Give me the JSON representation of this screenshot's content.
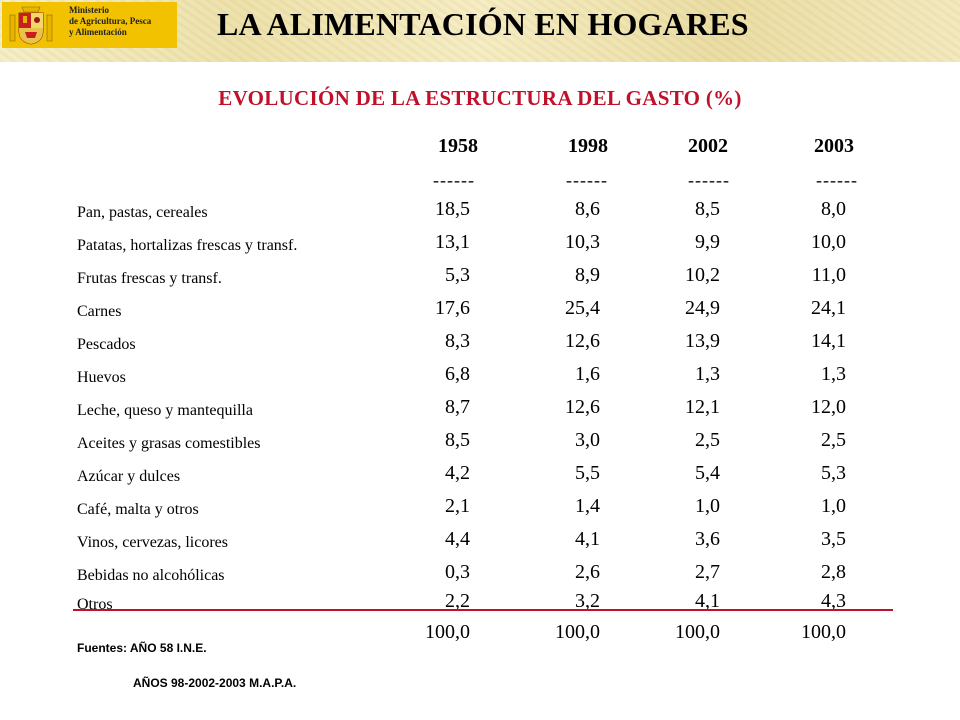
{
  "header": {
    "ministry_lines": [
      "Ministerio",
      "de Agricultura, Pesca",
      "y Alimentación"
    ],
    "title": "LA ALIMENTACIÓN EN HOGARES",
    "logo_colors": {
      "background": "#f2c200",
      "shield_red": "#c81e1e",
      "shield_gold": "#e8b400"
    }
  },
  "subtitle": "EVOLUCIÓN DE LA ESTRUCTURA DEL GASTO (%)",
  "table": {
    "years": [
      "1958",
      "1998",
      "2002",
      "2003"
    ],
    "separator": "------",
    "rows": [
      {
        "label": "Pan, pastas, cereales",
        "values": [
          "18,5",
          "8,6",
          "8,5",
          "8,0"
        ]
      },
      {
        "label": "Patatas, hortalizas frescas y transf.",
        "values": [
          "13,1",
          "10,3",
          "9,9",
          "10,0"
        ]
      },
      {
        "label": "Frutas frescas y transf.",
        "values": [
          "5,3",
          "8,9",
          "10,2",
          "11,0"
        ]
      },
      {
        "label": "Carnes",
        "values": [
          "17,6",
          "25,4",
          "24,9",
          "24,1"
        ]
      },
      {
        "label": "Pescados",
        "values": [
          "8,3",
          "12,6",
          "13,9",
          "14,1"
        ]
      },
      {
        "label": "Huevos",
        "values": [
          "6,8",
          "1,6",
          "1,3",
          "1,3"
        ]
      },
      {
        "label": "Leche, queso y mantequilla",
        "values": [
          "8,7",
          "12,6",
          "12,1",
          "12,0"
        ]
      },
      {
        "label": "Aceites y grasas comestibles",
        "values": [
          "8,5",
          "3,0",
          "2,5",
          "2,5"
        ]
      },
      {
        "label": "Azúcar y dulces",
        "values": [
          "4,2",
          "5,5",
          "5,4",
          "5,3"
        ]
      },
      {
        "label": "Café, malta y otros",
        "values": [
          "2,1",
          "1,4",
          "1,0",
          "1,0"
        ]
      },
      {
        "label": "Vinos, cervezas, licores",
        "values": [
          "4,4",
          "4,1",
          "3,6",
          "3,5"
        ]
      },
      {
        "label": "Bebidas no alcohólicas",
        "values": [
          "0,3",
          "2,6",
          "2,7",
          "2,8"
        ]
      },
      {
        "label": "Otros",
        "values": [
          "2,2",
          "3,2",
          "4,1",
          "4,3"
        ]
      }
    ],
    "totals": [
      "100,0",
      "100,0",
      "100,0",
      "100,0"
    ]
  },
  "sources": {
    "line1": "Fuentes: AÑO  58  I.N.E.",
    "line2": "AÑOS 98-2002-2003 M.A.P.A."
  }
}
